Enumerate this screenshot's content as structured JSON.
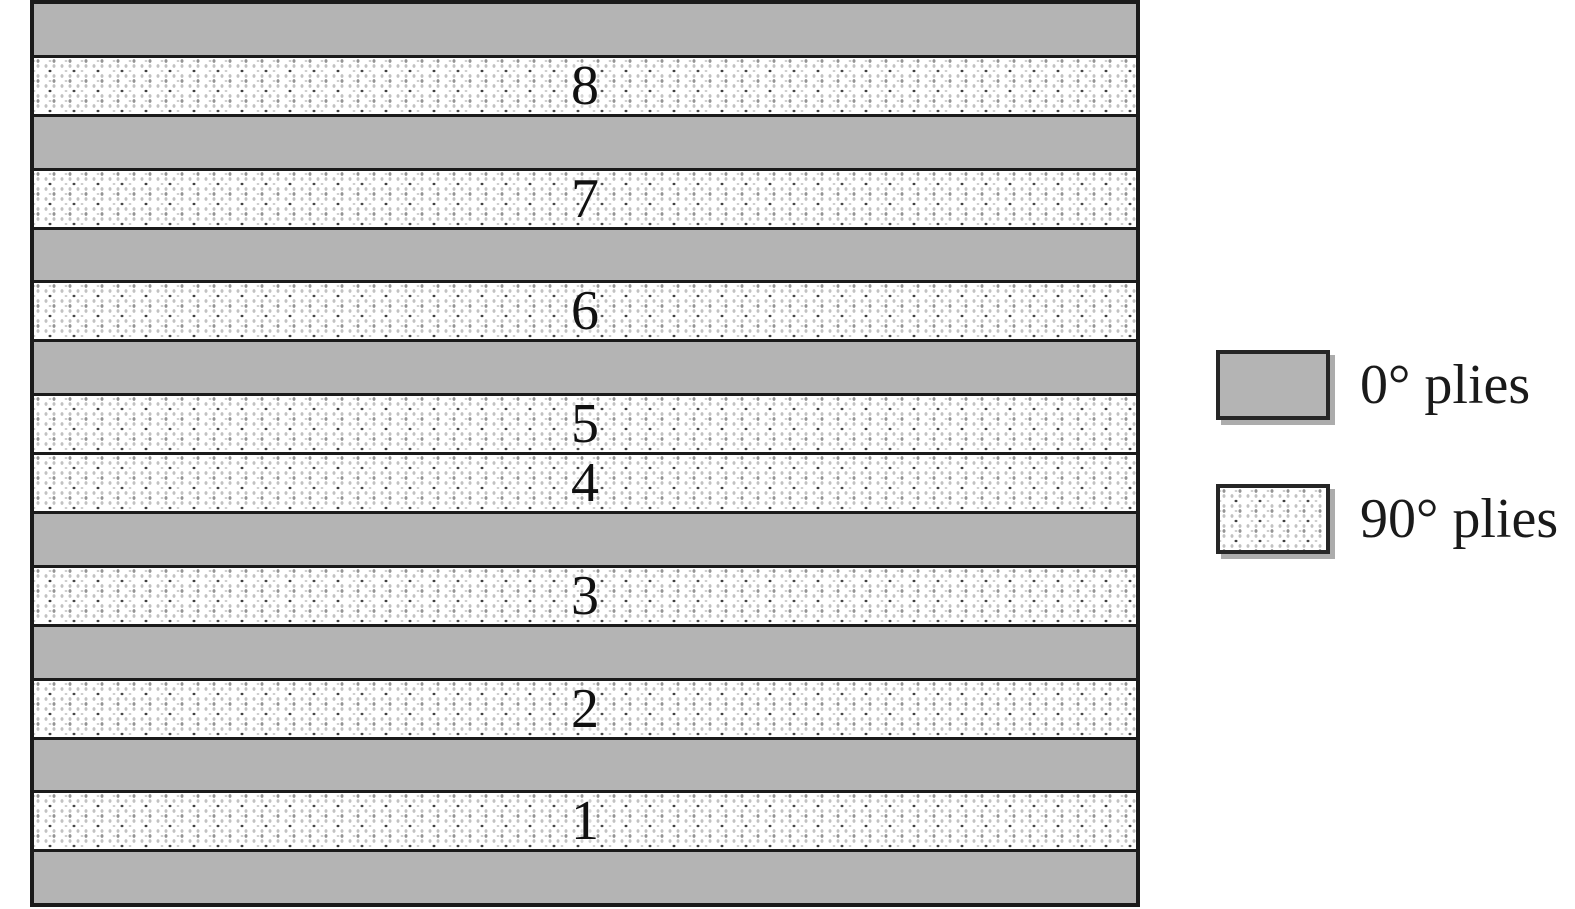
{
  "diagram": {
    "description": "Laminate ply stacking sequence cross-section",
    "layers": [
      {
        "type": "0",
        "label": ""
      },
      {
        "type": "90",
        "label": "8"
      },
      {
        "type": "0",
        "label": ""
      },
      {
        "type": "90",
        "label": "7"
      },
      {
        "type": "0",
        "label": ""
      },
      {
        "type": "90",
        "label": "6"
      },
      {
        "type": "0",
        "label": ""
      },
      {
        "type": "90",
        "label": "5"
      },
      {
        "type": "90",
        "label": "4"
      },
      {
        "type": "0",
        "label": ""
      },
      {
        "type": "90",
        "label": "3"
      },
      {
        "type": "0",
        "label": ""
      },
      {
        "type": "90",
        "label": "2"
      },
      {
        "type": "0",
        "label": ""
      },
      {
        "type": "90",
        "label": "1"
      },
      {
        "type": "0",
        "label": ""
      }
    ],
    "colors": {
      "ply0_fill": "#b4b4b4",
      "ply90_fill": "#ffffff",
      "line": "#1b1b1b"
    }
  },
  "legend": {
    "items": [
      {
        "type": "0",
        "label": "0° plies"
      },
      {
        "type": "90",
        "label": "90° plies"
      }
    ]
  }
}
